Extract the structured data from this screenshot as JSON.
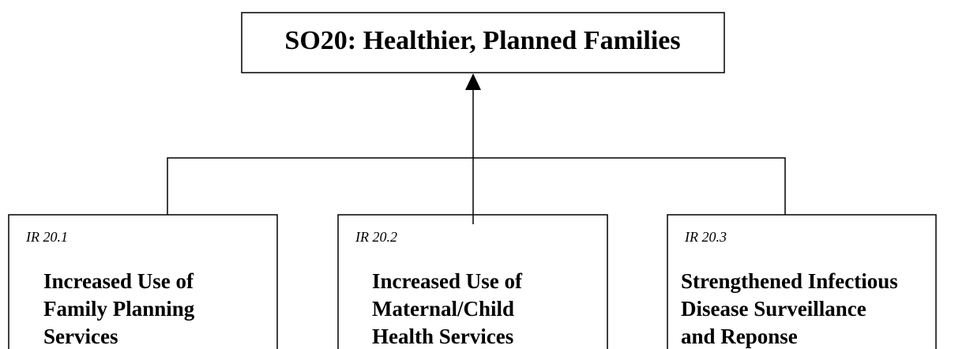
{
  "root": {
    "label": "SO20: Healthier, Planned Families"
  },
  "nodes": [
    {
      "code": "IR 20.1",
      "lines": [
        "Increased Use of",
        "Family Planning",
        "Services"
      ]
    },
    {
      "code": "IR 20.2",
      "lines": [
        "Increased Use of",
        "Maternal/Child",
        "Health Services"
      ]
    },
    {
      "code": "IR 20.3",
      "lines": [
        "Strengthened Infectious",
        "Disease Surveillance",
        "and Reponse"
      ]
    }
  ]
}
